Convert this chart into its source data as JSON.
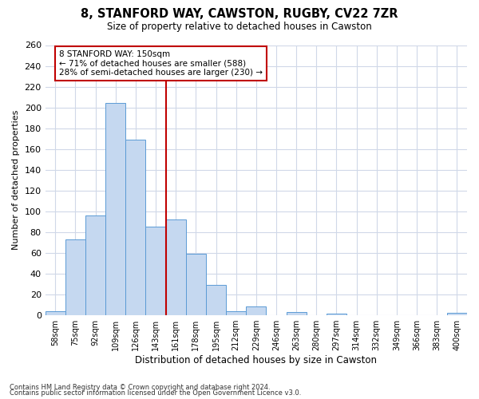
{
  "title1": "8, STANFORD WAY, CAWSTON, RUGBY, CV22 7ZR",
  "title2": "Size of property relative to detached houses in Cawston",
  "xlabel": "Distribution of detached houses by size in Cawston",
  "ylabel": "Number of detached properties",
  "categories": [
    "58sqm",
    "75sqm",
    "92sqm",
    "109sqm",
    "126sqm",
    "143sqm",
    "161sqm",
    "178sqm",
    "195sqm",
    "212sqm",
    "229sqm",
    "246sqm",
    "263sqm",
    "280sqm",
    "297sqm",
    "314sqm",
    "332sqm",
    "349sqm",
    "366sqm",
    "383sqm",
    "400sqm"
  ],
  "values": [
    4,
    73,
    96,
    204,
    169,
    85,
    92,
    59,
    29,
    4,
    8,
    0,
    3,
    0,
    1,
    0,
    0,
    0,
    0,
    0,
    2
  ],
  "bar_color": "#c5d8f0",
  "bar_edge_color": "#5b9bd5",
  "vline_bin": 6,
  "vline_color": "#c00000",
  "annotation_line1": "8 STANFORD WAY: 150sqm",
  "annotation_line2": "← 71% of detached houses are smaller (588)",
  "annotation_line3": "28% of semi-detached houses are larger (230) →",
  "annotation_box_color": "#c00000",
  "ylim": [
    0,
    260
  ],
  "yticks": [
    0,
    20,
    40,
    60,
    80,
    100,
    120,
    140,
    160,
    180,
    200,
    220,
    240,
    260
  ],
  "footer1": "Contains HM Land Registry data © Crown copyright and database right 2024.",
  "footer2": "Contains public sector information licensed under the Open Government Licence v3.0.",
  "background_color": "#ffffff",
  "grid_color": "#d0d8e8"
}
